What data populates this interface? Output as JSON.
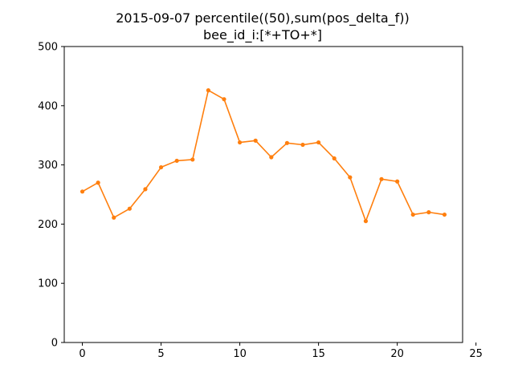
{
  "chart_data": {
    "type": "line",
    "title": "2015-09-07 percentile((50),sum(pos_delta_f))",
    "subtitle": "bee_id_i:[*+TO+*]",
    "xlabel": "",
    "ylabel": "",
    "xlim": [
      -1.15,
      24.15
    ],
    "ylim": [
      0,
      500
    ],
    "xticks": [
      0,
      5,
      10,
      15,
      20,
      25
    ],
    "yticks": [
      0,
      100,
      200,
      300,
      400,
      500
    ],
    "grid": false,
    "series": [
      {
        "color": "#ff7f0e",
        "x": [
          0,
          1,
          2,
          3,
          4,
          5,
          6,
          7,
          8,
          9,
          10,
          11,
          12,
          13,
          14,
          15,
          16,
          17,
          18,
          19,
          20,
          21,
          22,
          23
        ],
        "y": [
          255,
          270,
          211,
          226,
          259,
          296,
          307,
          309,
          426,
          411,
          338,
          341,
          313,
          337,
          334,
          338,
          311,
          279,
          205,
          276,
          272,
          216,
          220,
          216
        ]
      }
    ]
  }
}
